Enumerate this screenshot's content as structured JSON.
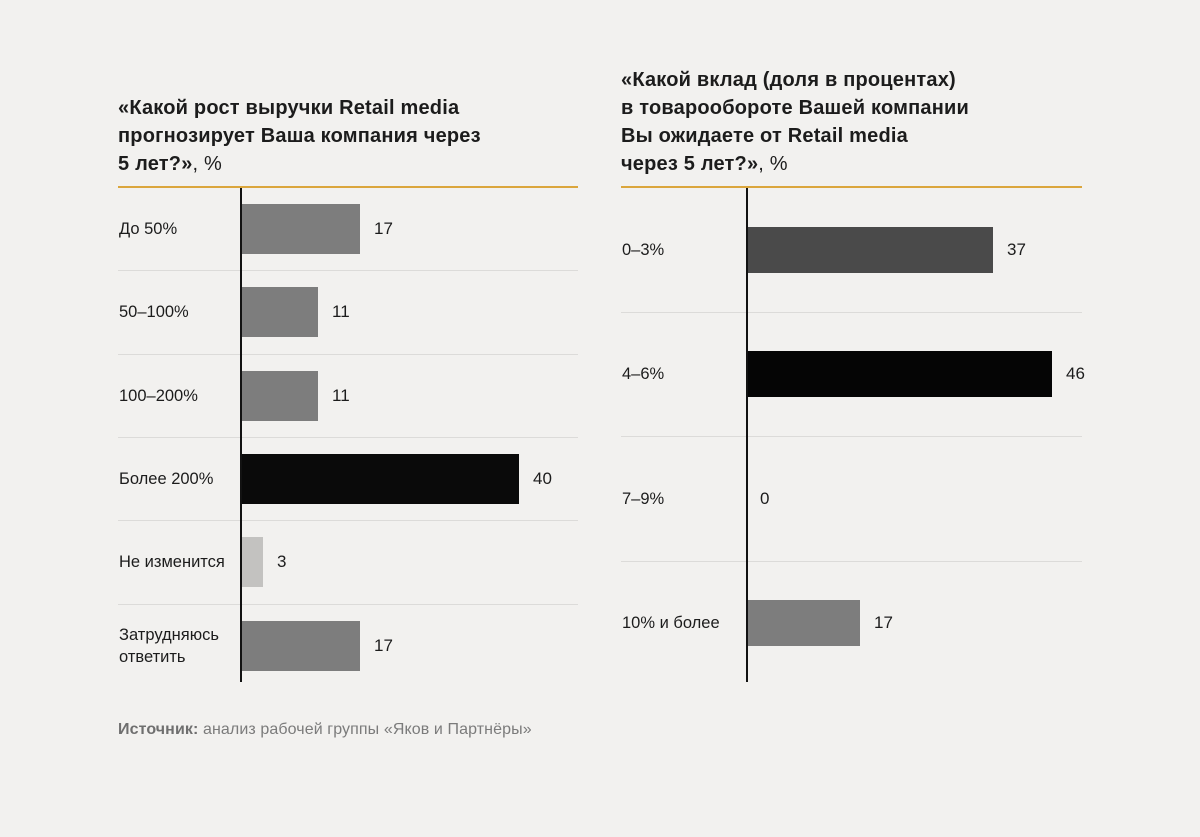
{
  "page": {
    "background_color": "#f2f1ef",
    "accent_color": "#dba63c"
  },
  "source": {
    "label": "Источник:",
    "text": " анализ рабочей группы «Яков и Партнёры»"
  },
  "chart_data": [
    {
      "type": "bar",
      "orientation": "horizontal",
      "title_lines": [
        "«Какой рост выручки Retail media",
        "прогнозирует Ваша компания через"
      ],
      "title_last_line": "5 лет?»",
      "title_suffix": ", %",
      "categories": [
        "До 50%",
        "50–100%",
        "100–200%",
        "Более 200%",
        "Не изменится",
        "Затрудняюсь ответить"
      ],
      "values": [
        17,
        11,
        11,
        40,
        3,
        17
      ],
      "bar_colors": [
        "#7d7d7d",
        "#7d7d7d",
        "#7d7d7d",
        "#0a0a0a",
        "#c3c2c0",
        "#7d7d7d"
      ],
      "xlim": [
        0,
        48
      ],
      "value_labels_shown": true,
      "grid": false,
      "legend": "none"
    },
    {
      "type": "bar",
      "orientation": "horizontal",
      "title_lines": [
        "«Какой вклад (доля в процентах)",
        "в товарообороте Вашей компании",
        "Вы ожидаете от Retail media"
      ],
      "title_last_line": "через 5 лет?»",
      "title_suffix": ", %",
      "categories": [
        "0–3%",
        "4–6%",
        "7–9%",
        "10% и более"
      ],
      "values": [
        37,
        46,
        0,
        17
      ],
      "bar_colors": [
        "#4a4a4a",
        "#050505",
        "#7d7d7d",
        "#7d7d7d"
      ],
      "xlim": [
        0,
        50
      ],
      "value_labels_shown": true,
      "grid": false,
      "legend": "none"
    }
  ]
}
